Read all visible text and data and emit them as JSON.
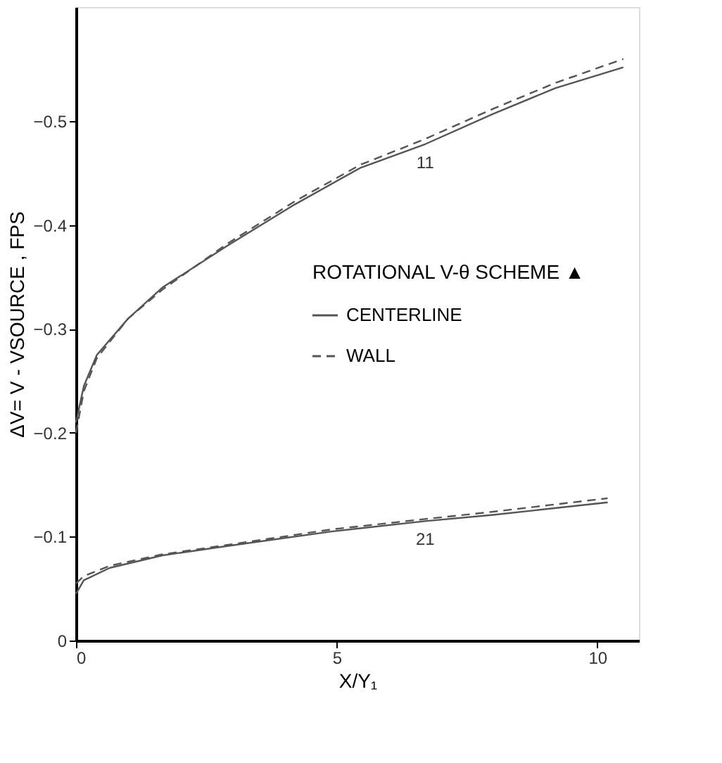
{
  "chart_data": {
    "type": "line",
    "xlabel": "X/Y₁",
    "ylabel": "ΔV= V - VSOURCE , FPS",
    "legend_title": "ROTATIONAL V-θ SCHEME ▲",
    "xlim": [
      0,
      10.8
    ],
    "ylim": [
      0,
      -0.61
    ],
    "xticks": [
      0,
      5,
      10
    ],
    "yticks": [
      0,
      -0.1,
      -0.2,
      -0.3,
      -0.4,
      -0.5
    ],
    "grid": false,
    "legend": "right",
    "series": [
      {
        "name": "CENTERLINE",
        "color": "#555555",
        "line_style": "solid",
        "x": [
          0,
          0.15,
          0.4,
          1.0,
          1.66,
          2.9,
          4.2,
          5.45,
          6.7,
          8.0,
          9.2,
          10.5
        ],
        "values": [
          -0.21,
          -0.245,
          -0.275,
          -0.31,
          -0.34,
          -0.38,
          -0.42,
          -0.455,
          -0.478,
          -0.507,
          -0.532,
          -0.552
        ]
      },
      {
        "name": "WALL",
        "color": "#555555",
        "line_style": "dashed",
        "x": [
          0,
          0.15,
          0.4,
          1.0,
          1.66,
          2.9,
          4.2,
          5.45,
          6.7,
          8.0,
          9.2,
          10.5
        ],
        "values": [
          -0.2,
          -0.24,
          -0.272,
          -0.31,
          -0.338,
          -0.382,
          -0.423,
          -0.458,
          -0.483,
          -0.512,
          -0.537,
          -0.56
        ]
      },
      {
        "color": "#555555",
        "line_style": "solid",
        "x": [
          0,
          0.15,
          0.65,
          1.66,
          2.9,
          4.9,
          6.7,
          8.0,
          10.2
        ],
        "values": [
          -0.045,
          -0.058,
          -0.07,
          -0.082,
          -0.091,
          -0.105,
          -0.115,
          -0.121,
          -0.133
        ]
      },
      {
        "color": "#555555",
        "line_style": "dashed",
        "x": [
          0,
          0.15,
          0.65,
          1.66,
          2.9,
          4.9,
          6.7,
          8.0,
          10.2
        ],
        "values": [
          -0.055,
          -0.062,
          -0.072,
          -0.083,
          -0.092,
          -0.107,
          -0.117,
          -0.124,
          -0.137
        ]
      }
    ],
    "annotations": [
      {
        "text": "11",
        "x": 6.7,
        "y": -0.478
      },
      {
        "text": "21",
        "x": 6.7,
        "y": -0.115
      }
    ]
  }
}
